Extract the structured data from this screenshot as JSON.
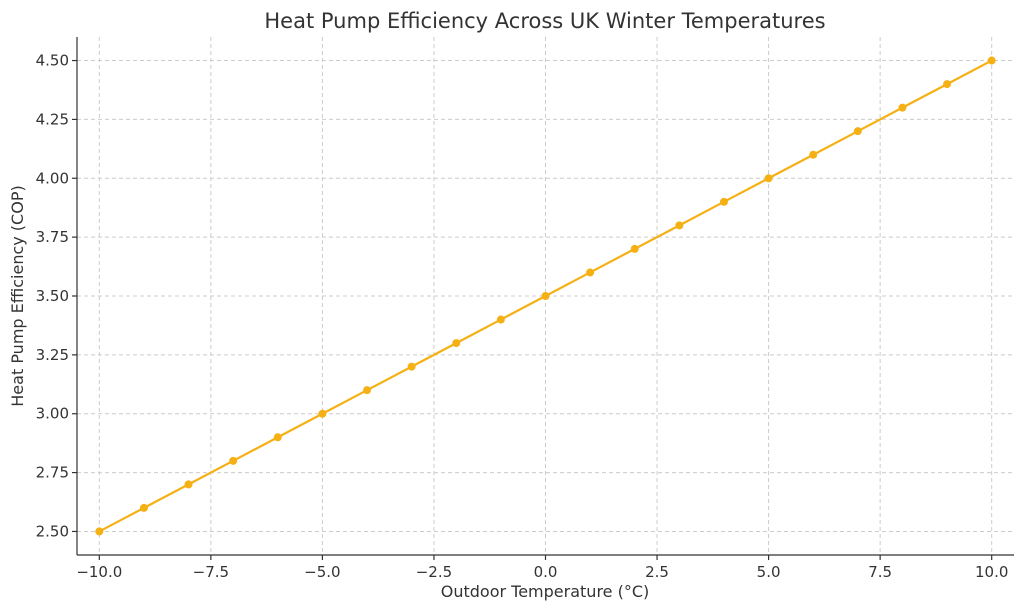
{
  "chart_data": {
    "type": "line",
    "title": "Heat Pump Efficiency Across UK Winter Temperatures",
    "xlabel": "Outdoor Temperature (°C)",
    "ylabel": "Heat Pump Efficiency (COP)",
    "xlim": [
      -10.5,
      10.5
    ],
    "ylim": [
      2.4,
      4.6
    ],
    "xticks": [
      -10.0,
      -7.5,
      -5.0,
      -2.5,
      0.0,
      2.5,
      5.0,
      7.5,
      10.0
    ],
    "xtick_labels": [
      "−10.0",
      "−7.5",
      "−5.0",
      "−2.5",
      "0.0",
      "2.5",
      "5.0",
      "7.5",
      "10.0"
    ],
    "yticks": [
      2.5,
      2.75,
      3.0,
      3.25,
      3.5,
      3.75,
      4.0,
      4.25,
      4.5
    ],
    "ytick_labels": [
      "2.50",
      "2.75",
      "3.00",
      "3.25",
      "3.50",
      "3.75",
      "4.00",
      "4.25",
      "4.50"
    ],
    "grid": true,
    "series": [
      {
        "color": "#f5b014",
        "marker": "circle",
        "x": [
          -10,
          -9,
          -8,
          -7,
          -6,
          -5,
          -4,
          -3,
          -2,
          -1,
          0,
          1,
          2,
          3,
          4,
          5,
          6,
          7,
          8,
          9,
          10
        ],
        "y": [
          2.5,
          2.6,
          2.7,
          2.8,
          2.9,
          3.0,
          3.1,
          3.2,
          3.3,
          3.4,
          3.5,
          3.6,
          3.7,
          3.8,
          3.9,
          4.0,
          4.1,
          4.2,
          4.3,
          4.4,
          4.5
        ]
      }
    ]
  }
}
